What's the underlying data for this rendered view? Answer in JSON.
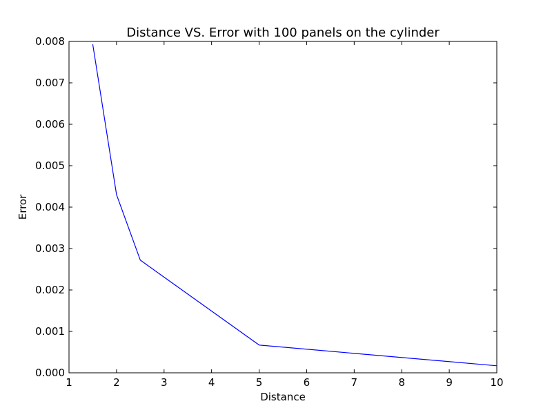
{
  "chart_data": {
    "type": "line",
    "title": "Distance VS. Error with 100 panels on the cylinder",
    "xlabel": "Distance",
    "ylabel": "Error",
    "xlim": [
      1,
      10
    ],
    "ylim": [
      0,
      0.008
    ],
    "xticks": [
      "1",
      "2",
      "3",
      "4",
      "5",
      "6",
      "7",
      "8",
      "9",
      "10"
    ],
    "yticks": [
      "0.000",
      "0.001",
      "0.002",
      "0.003",
      "0.004",
      "0.005",
      "0.006",
      "0.007",
      "0.008"
    ],
    "grid": false,
    "legend": "none",
    "line_color": "#0000ff",
    "series": [
      {
        "x": [
          1.5,
          2,
          2.5,
          5,
          10
        ],
        "values": [
          0.00793,
          0.0043,
          0.00272,
          0.00067,
          0.00017
        ]
      }
    ]
  }
}
